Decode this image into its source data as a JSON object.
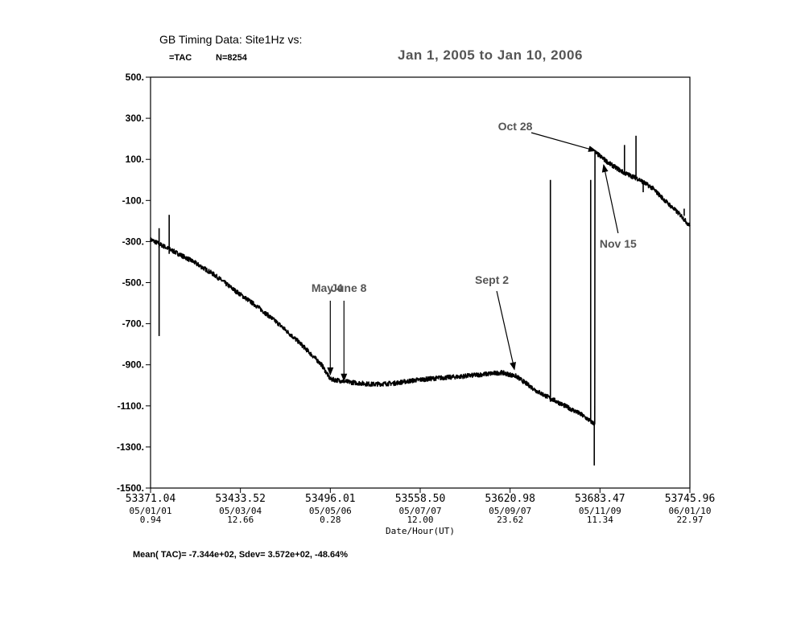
{
  "header": {
    "title": "GB Timing Data: Site1Hz vs:",
    "subtitle_series": "=TAC",
    "subtitle_count": "N=8254",
    "date_range": "Jan 1, 2005 to Jan 10, 2006"
  },
  "footer": {
    "stats": "Mean( TAC)=  -7.344e+02, Sdev=   3.572e+02,  -48.64%"
  },
  "chart_data": {
    "type": "line",
    "title": "GB Timing Data: Site1Hz vs:",
    "xlabel": "Date/Hour(UT)",
    "ylabel": "",
    "xlim": [
      53371.04,
      53745.96
    ],
    "ylim": [
      -1500,
      500
    ],
    "grid": false,
    "series": [
      {
        "name": "TAC",
        "color": "#000000",
        "points": [
          [
            53371.04,
            -290
          ],
          [
            53385,
            -340
          ],
          [
            53400,
            -395
          ],
          [
            53415,
            -460
          ],
          [
            53430,
            -540
          ],
          [
            53445,
            -615
          ],
          [
            53460,
            -700
          ],
          [
            53475,
            -795
          ],
          [
            53490,
            -900
          ],
          [
            53496,
            -970
          ],
          [
            53510,
            -985
          ],
          [
            53525,
            -995
          ],
          [
            53540,
            -990
          ],
          [
            53555,
            -975
          ],
          [
            53570,
            -965
          ],
          [
            53585,
            -958
          ],
          [
            53600,
            -948
          ],
          [
            53615,
            -938
          ],
          [
            53625,
            -955
          ],
          [
            53640,
            -1030
          ],
          [
            53655,
            -1085
          ],
          [
            53670,
            -1140
          ],
          [
            53679,
            -1185
          ],
          [
            53680,
            135
          ],
          [
            53690,
            80
          ],
          [
            53700,
            35
          ],
          [
            53710,
            5
          ],
          [
            53720,
            -40
          ],
          [
            53730,
            -110
          ],
          [
            53740,
            -175
          ],
          [
            53745.96,
            -225
          ]
        ],
        "spikes": [
          {
            "x": 53377,
            "y_from": -320,
            "y_to": -760
          },
          {
            "x": 53377,
            "y_from": -330,
            "y_to": -235
          },
          {
            "x": 53384,
            "y_from": -360,
            "y_to": -170
          },
          {
            "x": 53649,
            "y_from": -1080,
            "y_to": 0
          },
          {
            "x": 53677,
            "y_from": -1165,
            "y_to": 0
          },
          {
            "x": 53679.5,
            "y_from": -1185,
            "y_to": -1390
          },
          {
            "x": 53700.5,
            "y_from": 30,
            "y_to": 170
          },
          {
            "x": 53708.5,
            "y_from": 10,
            "y_to": 215
          },
          {
            "x": 53713.5,
            "y_from": -15,
            "y_to": -60
          },
          {
            "x": 53742,
            "y_from": -175,
            "y_to": -140
          }
        ]
      }
    ],
    "y_ticks": [
      "500.",
      "300.",
      "100.",
      "-100.",
      "-300.",
      "-500.",
      "-700.",
      "-900.",
      "-1100.",
      "-1300.",
      "-1500."
    ],
    "y_tick_values": [
      500,
      300,
      100,
      -100,
      -300,
      -500,
      -700,
      -900,
      -1100,
      -1300,
      -1500
    ],
    "x_ticks": [
      {
        "value": 53371.04,
        "label": "53371.04",
        "date": "05/01/01",
        "hour": "0.94"
      },
      {
        "value": 53433.52,
        "label": "53433.52",
        "date": "05/03/04",
        "hour": "12.66"
      },
      {
        "value": 53496.01,
        "label": "53496.01",
        "date": "05/05/06",
        "hour": "0.28"
      },
      {
        "value": 53558.5,
        "label": "53558.50",
        "date": "05/07/07",
        "hour": "12.00"
      },
      {
        "value": 53620.98,
        "label": "53620.98",
        "date": "05/09/07",
        "hour": "23.62"
      },
      {
        "value": 53683.47,
        "label": "53683.47",
        "date": "05/11/09",
        "hour": "11.34"
      },
      {
        "value": 53745.96,
        "label": "53745.96",
        "date": "06/01/10",
        "hour": "22.97"
      }
    ],
    "annotations": [
      {
        "text": "May 4",
        "x": 53496,
        "y": -960,
        "text_pos": "above"
      },
      {
        "text": "June 8",
        "x": 53505.5,
        "y": -990,
        "text_pos": "above"
      },
      {
        "text": "Sept 2",
        "x": 53624,
        "y": -935,
        "text_pos": "above-left"
      },
      {
        "text": "Oct 28",
        "x": 53680.5,
        "y": 130,
        "text_pos": "left"
      },
      {
        "text": "Nov 15",
        "x": 53686,
        "y": 85,
        "text_pos": "below"
      }
    ]
  }
}
